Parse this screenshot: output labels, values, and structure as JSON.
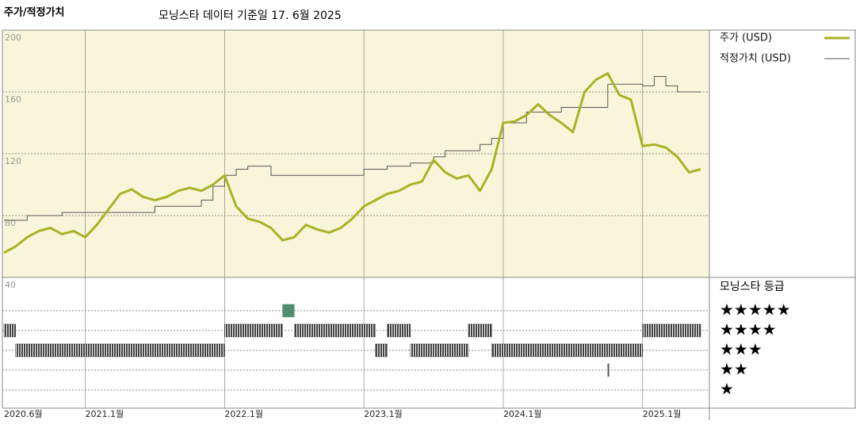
{
  "chart_data": [
    {
      "type": "line",
      "title": "주가/적정가치",
      "subtitle": "모닝스타 데이터 기준일 17. 6월 2025",
      "x": [
        "2020-06",
        "2020-07",
        "2020-08",
        "2020-09",
        "2020-10",
        "2020-11",
        "2020-12",
        "2021-01",
        "2021-02",
        "2021-03",
        "2021-04",
        "2021-05",
        "2021-06",
        "2021-07",
        "2021-08",
        "2021-09",
        "2021-10",
        "2021-11",
        "2021-12",
        "2022-01",
        "2022-02",
        "2022-03",
        "2022-04",
        "2022-05",
        "2022-06",
        "2022-07",
        "2022-08",
        "2022-09",
        "2022-10",
        "2022-11",
        "2022-12",
        "2023-01",
        "2023-02",
        "2023-03",
        "2023-04",
        "2023-05",
        "2023-06",
        "2023-07",
        "2023-08",
        "2023-09",
        "2023-10",
        "2023-11",
        "2023-12",
        "2024-01",
        "2024-02",
        "2024-03",
        "2024-04",
        "2024-05",
        "2024-06",
        "2024-07",
        "2024-08",
        "2024-09",
        "2024-10",
        "2024-11",
        "2024-12",
        "2025-01",
        "2025-02",
        "2025-03",
        "2025-04",
        "2025-05",
        "2025-06"
      ],
      "series": [
        {
          "name": "주가 (USD)",
          "color": "#a9b225",
          "width": 3,
          "values": [
            56,
            60,
            66,
            70,
            72,
            68,
            70,
            66,
            74,
            84,
            94,
            97,
            92,
            90,
            92,
            96,
            98,
            96,
            100,
            106,
            86,
            78,
            76,
            72,
            64,
            66,
            74,
            71,
            69,
            72,
            78,
            86,
            90,
            94,
            96,
            100,
            102,
            116,
            108,
            104,
            106,
            96,
            110,
            140,
            141,
            145,
            152,
            145,
            140,
            134,
            160,
            168,
            172,
            158,
            155,
            125,
            126,
            124,
            118,
            108,
            110
          ]
        },
        {
          "name": "적정가치 (USD)",
          "color": "#555555",
          "width": 1,
          "step": true,
          "values": [
            77,
            77,
            80,
            80,
            80,
            82,
            82,
            82,
            82,
            82,
            82,
            82,
            82,
            86,
            86,
            86,
            86,
            90,
            99,
            106,
            110,
            112,
            112,
            106,
            106,
            106,
            106,
            106,
            106,
            106,
            106,
            110,
            110,
            112,
            112,
            114,
            114,
            118,
            122,
            122,
            122,
            126,
            130,
            140,
            140,
            147,
            147,
            147,
            150,
            150,
            150,
            150,
            165,
            165,
            165,
            164,
            170,
            164,
            160,
            160,
            160
          ]
        }
      ],
      "ylim": [
        40,
        200
      ],
      "yticks": [
        40,
        80,
        120,
        160,
        200
      ],
      "xticks": [
        {
          "value": "2020-06",
          "label": "2020.6월"
        },
        {
          "value": "2021-01",
          "label": "2021.1월"
        },
        {
          "value": "2022-01",
          "label": "2022.1월"
        },
        {
          "value": "2023-01",
          "label": "2023.1월"
        },
        {
          "value": "2024-01",
          "label": "2024.1월"
        },
        {
          "value": "2025-01",
          "label": "2025.1월"
        }
      ],
      "grid": true,
      "background": "#f8f6da"
    },
    {
      "type": "rating",
      "title": "모닝스타 등급",
      "levels": [
        "★★★★★",
        "★★★★",
        "★★★",
        "★★",
        "★"
      ],
      "segments": [
        {
          "start": "2020-06",
          "end": "2020-07",
          "stars": 4,
          "color": "#333333"
        },
        {
          "start": "2020-07",
          "end": "2022-01",
          "stars": 3,
          "color": "#333333"
        },
        {
          "start": "2022-01",
          "end": "2022-06",
          "stars": 4,
          "color": "#333333"
        },
        {
          "start": "2022-06",
          "end": "2022-07",
          "stars": 5,
          "color": "#4f8f70"
        },
        {
          "start": "2022-07",
          "end": "2023-02",
          "stars": 4,
          "color": "#333333"
        },
        {
          "start": "2023-02",
          "end": "2023-03",
          "stars": 3,
          "color": "#333333"
        },
        {
          "start": "2023-03",
          "end": "2023-05",
          "stars": 4,
          "color": "#333333"
        },
        {
          "start": "2023-05",
          "end": "2023-10",
          "stars": 3,
          "color": "#333333"
        },
        {
          "start": "2023-10",
          "end": "2023-12",
          "stars": 4,
          "color": "#333333"
        },
        {
          "start": "2023-12",
          "end": "2025-01",
          "stars": 3,
          "color": "#333333"
        },
        {
          "start": "2024-10",
          "end": "2024-10",
          "stars": 2,
          "color": "#555555"
        },
        {
          "start": "2025-01",
          "end": "2025-06",
          "stars": 4,
          "color": "#333333"
        }
      ]
    }
  ]
}
